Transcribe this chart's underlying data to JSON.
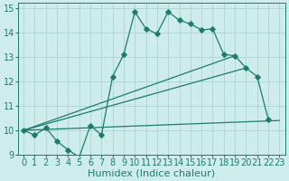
{
  "xlabel": "Humidex (Indice chaleur)",
  "background_color": "#ceecea",
  "grid_color": "#aed4d2",
  "line_color": "#1e7b6e",
  "xlim": [
    -0.5,
    23.5
  ],
  "ylim": [
    9,
    15.2
  ],
  "xticks": [
    0,
    1,
    2,
    3,
    4,
    5,
    6,
    7,
    8,
    9,
    10,
    11,
    12,
    13,
    14,
    15,
    16,
    17,
    18,
    19,
    20,
    21,
    22,
    23
  ],
  "yticks": [
    9,
    10,
    11,
    12,
    13,
    14,
    15
  ],
  "main_x": [
    0,
    1,
    2,
    3,
    4,
    5,
    6,
    7,
    8,
    9,
    10,
    11,
    12,
    13,
    14,
    15,
    16,
    17,
    18,
    19,
    20,
    21,
    22
  ],
  "main_y": [
    10.0,
    9.8,
    10.1,
    9.55,
    9.2,
    8.9,
    10.2,
    9.8,
    12.2,
    13.1,
    14.85,
    14.15,
    13.95,
    14.85,
    14.5,
    14.35,
    14.1,
    14.15,
    13.1,
    13.05,
    12.55,
    12.2,
    10.45
  ],
  "line2_x": [
    0,
    23
  ],
  "line2_y": [
    10.0,
    10.4
  ],
  "line3_x": [
    0,
    20
  ],
  "line3_y": [
    10.0,
    12.55
  ],
  "line4_x": [
    0,
    19
  ],
  "line4_y": [
    10.0,
    13.05
  ],
  "font_size_xlabel": 8,
  "font_size_ticks": 7
}
